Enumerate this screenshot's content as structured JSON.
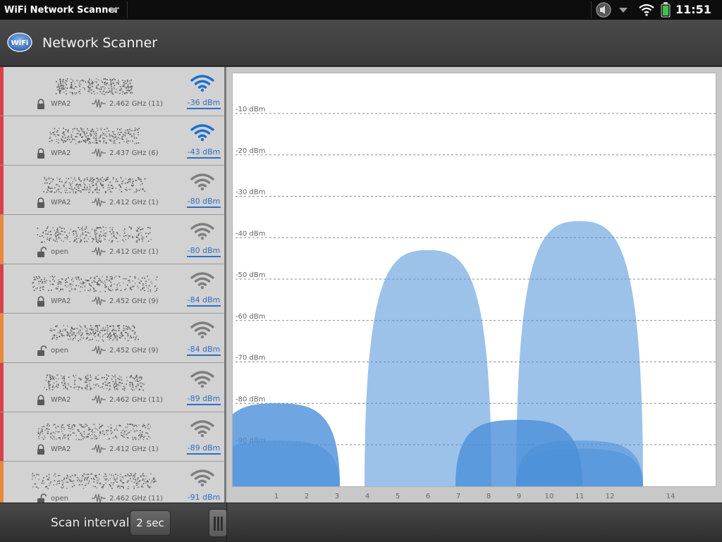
{
  "statusbar": {
    "app_name": "WiFi Network Scanner",
    "clock": "11:51",
    "icons": [
      "chevron-down-icon",
      "speaker-icon",
      "wifi-icon",
      "battery-icon"
    ]
  },
  "header": {
    "title": "Network Scanner",
    "logo_text": "WiFi",
    "logo_icon": "wifi-logo-icon"
  },
  "networks": [
    {
      "security": "WPA2",
      "frequency": "2.462 GHz (11)",
      "signal": "-36 dBm",
      "strength": "strong",
      "accent": "#d9414a",
      "locked": true
    },
    {
      "security": "WPA2",
      "frequency": "2.437 GHz (6)",
      "signal": "-43 dBm",
      "strength": "strong",
      "accent": "#d9414a",
      "locked": true
    },
    {
      "security": "WPA2",
      "frequency": "2.412 GHz (1)",
      "signal": "-80 dBm",
      "strength": "weak",
      "accent": "#d9414a",
      "locked": true
    },
    {
      "security": "open",
      "frequency": "2.412 GHz (1)",
      "signal": "-80 dBm",
      "strength": "weak",
      "accent": "#e8883a",
      "locked": false
    },
    {
      "security": "WPA2",
      "frequency": "2.452 GHz (9)",
      "signal": "-84 dBm",
      "strength": "weak",
      "accent": "#d9414a",
      "locked": true
    },
    {
      "security": "open",
      "frequency": "2.452 GHz (9)",
      "signal": "-84 dBm",
      "strength": "weak",
      "accent": "#e8883a",
      "locked": false
    },
    {
      "security": "WPA2",
      "frequency": "2.462 GHz (11)",
      "signal": "-89 dBm",
      "strength": "weak",
      "accent": "#d9414a",
      "locked": true
    },
    {
      "security": "WPA2",
      "frequency": "2.412 GHz (1)",
      "signal": "-89 dBm",
      "strength": "weak",
      "accent": "#d9414a",
      "locked": true
    },
    {
      "security": "open",
      "frequency": "2.462 GHz (11)",
      "signal": "-91 dBm",
      "strength": "weak",
      "accent": "#e8883a",
      "locked": false
    }
  ],
  "chart": {
    "y_labels": [
      "-10 dBm",
      "-20 dBm",
      "-30 dBm",
      "-40 dBm",
      "-50 dBm",
      "-60 dBm",
      "-70 dBm",
      "-80 dBm",
      "-90 dBm"
    ],
    "x_labels": [
      "1",
      "2",
      "3",
      "4",
      "5",
      "6",
      "7",
      "8",
      "9",
      "10",
      "11",
      "12",
      "14"
    ],
    "channel_values": [
      1,
      2,
      3,
      4,
      5,
      6,
      7,
      8,
      9,
      10,
      11,
      12,
      14
    ],
    "y_values": [
      -10,
      -20,
      -30,
      -40,
      -50,
      -60,
      -70,
      -80,
      -90
    ],
    "fill_color": "#4a90d9",
    "networks": [
      {
        "channel": 11,
        "signal": -36
      },
      {
        "channel": 6,
        "signal": -43
      },
      {
        "channel": 1,
        "signal": -80
      },
      {
        "channel": 1,
        "signal": -80
      },
      {
        "channel": 9,
        "signal": -84
      },
      {
        "channel": 9,
        "signal": -84
      },
      {
        "channel": 11,
        "signal": -89
      },
      {
        "channel": 1,
        "signal": -89
      },
      {
        "channel": 11,
        "signal": -91
      }
    ]
  },
  "footer": {
    "scan_label": "Scan interval:",
    "scan_value": "2 sec"
  }
}
